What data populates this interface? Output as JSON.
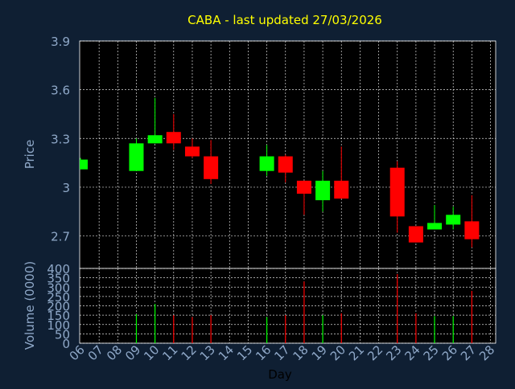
{
  "chart_data": {
    "type": "candlestick",
    "title": "CABA - last updated 27/03/2026",
    "xlabel": "Day",
    "colors": {
      "background": "#0f1f33",
      "plot_background": "#000000",
      "up": "#00ff00",
      "down": "#ff0000",
      "grid": "#ffffff",
      "axis_text": "#8fa8c8",
      "title": "#ffff00"
    },
    "x_ticks": [
      "06",
      "07",
      "08",
      "09",
      "10",
      "11",
      "12",
      "13",
      "14",
      "15",
      "16",
      "17",
      "18",
      "19",
      "20",
      "21",
      "22",
      "23",
      "24",
      "25",
      "26",
      "27",
      "28"
    ],
    "price_panel": {
      "ylabel": "Price",
      "ylim": [
        2.5,
        3.9
      ],
      "y_ticks": [
        "2.7",
        "3",
        "3.3",
        "3.6",
        "3.9"
      ],
      "y_tick_values": [
        2.7,
        3.0,
        3.3,
        3.6,
        3.9
      ],
      "grid": true
    },
    "volume_panel": {
      "ylabel": "Volume (0000)",
      "ylim": [
        0,
        400
      ],
      "y_ticks": [
        "0",
        "50",
        "100",
        "150",
        "200",
        "250",
        "300",
        "350",
        "400"
      ],
      "y_tick_values": [
        0,
        50,
        100,
        150,
        200,
        250,
        300,
        350,
        400
      ],
      "grid": true
    },
    "candles": [
      {
        "day": "06",
        "open": 3.11,
        "high": 3.18,
        "low": 3.11,
        "close": 3.17,
        "volume": 0
      },
      {
        "day": "09",
        "open": 3.1,
        "high": 3.3,
        "low": 3.1,
        "close": 3.27,
        "volume": 155
      },
      {
        "day": "10",
        "open": 3.27,
        "high": 3.55,
        "low": 3.27,
        "close": 3.32,
        "volume": 210
      },
      {
        "day": "11",
        "open": 3.34,
        "high": 3.45,
        "low": 3.23,
        "close": 3.27,
        "volume": 150
      },
      {
        "day": "12",
        "open": 3.25,
        "high": 3.3,
        "low": 3.18,
        "close": 3.19,
        "volume": 140
      },
      {
        "day": "13",
        "open": 3.19,
        "high": 3.29,
        "low": 3.02,
        "close": 3.05,
        "volume": 150
      },
      {
        "day": "16",
        "open": 3.1,
        "high": 3.26,
        "low": 3.07,
        "close": 3.19,
        "volume": 140
      },
      {
        "day": "17",
        "open": 3.19,
        "high": 3.2,
        "low": 3.03,
        "close": 3.09,
        "volume": 150
      },
      {
        "day": "18",
        "open": 3.04,
        "high": 3.04,
        "low": 2.83,
        "close": 2.96,
        "volume": 330
      },
      {
        "day": "19",
        "open": 2.92,
        "high": 3.1,
        "low": 2.85,
        "close": 3.04,
        "volume": 150
      },
      {
        "day": "20",
        "open": 3.04,
        "high": 3.25,
        "low": 2.93,
        "close": 2.93,
        "volume": 160
      },
      {
        "day": "23",
        "open": 3.12,
        "high": 3.16,
        "low": 2.72,
        "close": 2.82,
        "volume": 370
      },
      {
        "day": "24",
        "open": 2.76,
        "high": 2.76,
        "low": 2.66,
        "close": 2.66,
        "volume": 160
      },
      {
        "day": "25",
        "open": 2.74,
        "high": 2.89,
        "low": 2.74,
        "close": 2.78,
        "volume": 145
      },
      {
        "day": "26",
        "open": 2.77,
        "high": 2.88,
        "low": 2.74,
        "close": 2.83,
        "volume": 145
      },
      {
        "day": "27",
        "open": 2.79,
        "high": 2.95,
        "low": 2.63,
        "close": 2.68,
        "volume": 280
      }
    ]
  }
}
